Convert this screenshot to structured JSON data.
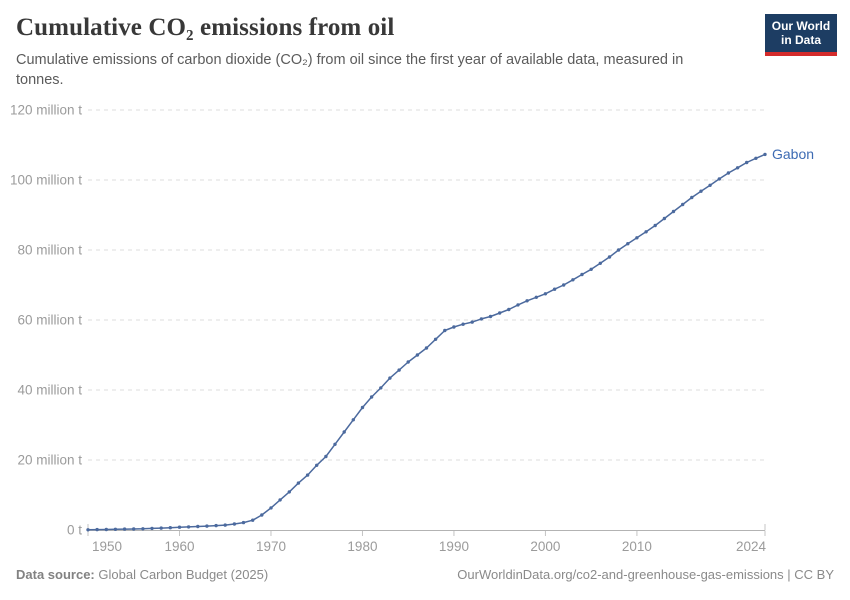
{
  "header": {
    "title": "Cumulative CO₂ emissions from oil",
    "subtitle": "Cumulative emissions of carbon dioxide (CO₂) from oil since the first year of available data, measured in tonnes."
  },
  "logo": {
    "line1": "Our World",
    "line2": "in Data",
    "bg_color": "#1d3d63",
    "bar_color": "#d42b2b"
  },
  "chart_data": {
    "type": "line",
    "title": "Cumulative CO₂ emissions from oil",
    "unit": "tonnes",
    "grid": "dashed horizontal",
    "legend_position": "line-end-label",
    "ylim": [
      0,
      120
    ],
    "xlim": [
      1950,
      2024
    ],
    "yticks": [
      {
        "value": 0,
        "label": "0 t"
      },
      {
        "value": 20,
        "label": "20 million t"
      },
      {
        "value": 40,
        "label": "40 million t"
      },
      {
        "value": 60,
        "label": "60 million t"
      },
      {
        "value": 80,
        "label": "80 million t"
      },
      {
        "value": 100,
        "label": "100 million t"
      },
      {
        "value": 120,
        "label": "120 million t"
      }
    ],
    "xticks": [
      {
        "year": 1950,
        "label": "1950"
      },
      {
        "year": 1960,
        "label": "1960"
      },
      {
        "year": 1970,
        "label": "1970"
      },
      {
        "year": 1980,
        "label": "1980"
      },
      {
        "year": 1990,
        "label": "1990"
      },
      {
        "year": 2000,
        "label": "2000"
      },
      {
        "year": 2010,
        "label": "2010"
      },
      {
        "year": 2024,
        "label": "2024"
      }
    ],
    "series": [
      {
        "name": "Gabon",
        "color": "#4c6a9e",
        "label_color": "#3d6bb3",
        "start_year": 1950,
        "values": [
          0.05,
          0.1,
          0.15,
          0.2,
          0.25,
          0.3,
          0.35,
          0.45,
          0.55,
          0.65,
          0.8,
          0.9,
          1.0,
          1.1,
          1.25,
          1.4,
          1.7,
          2.1,
          2.8,
          4.3,
          6.3,
          8.6,
          10.9,
          13.4,
          15.7,
          18.5,
          21.0,
          24.5,
          28.0,
          31.5,
          35.0,
          38.0,
          40.6,
          43.4,
          45.7,
          48.0,
          50.0,
          52.0,
          54.5,
          57.0,
          58.0,
          58.8,
          59.4,
          60.3,
          61.0,
          62.0,
          63.0,
          64.3,
          65.5,
          66.5,
          67.5,
          68.8,
          70.0,
          71.5,
          73.0,
          74.5,
          76.2,
          78.0,
          80.0,
          81.8,
          83.5,
          85.2,
          87.0,
          89.0,
          91.0,
          93.0,
          95.0,
          96.8,
          98.5,
          100.3,
          102.0,
          103.5,
          105.0,
          106.2,
          107.3
        ]
      }
    ]
  },
  "footer": {
    "datasource_label": "Data source:",
    "datasource": "Global Carbon Budget (2025)",
    "credit": "OurWorldinData.org/co2-and-greenhouse-gas-emissions | CC BY"
  }
}
